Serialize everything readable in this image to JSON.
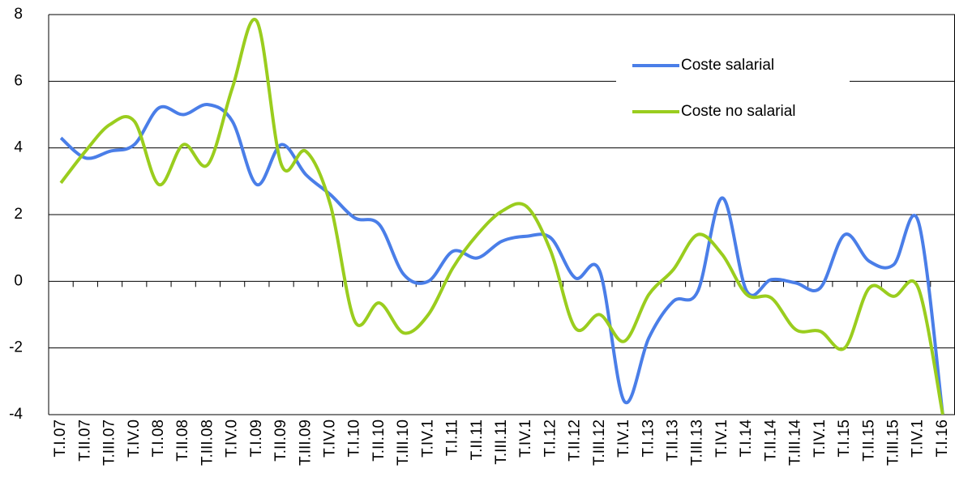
{
  "chart_data": {
    "type": "line",
    "categories": [
      "T.I.07",
      "T.II.07",
      "T.III.07",
      "T.IV.0",
      "T.I.08",
      "T.II.08",
      "T.III.08",
      "T.IV.0",
      "T.I.09",
      "T.II.09",
      "T.III.09",
      "T.IV.0",
      "T.I.10",
      "T.II.10",
      "T.III.10",
      "T.IV.1",
      "T.I.11",
      "T.II.11",
      "T.III.11",
      "T.IV.1",
      "T.I.12",
      "T.II.12",
      "T.III.12",
      "T.IV.1",
      "T.I.13",
      "T.II.13",
      "T.III.13",
      "T.IV.1",
      "T.I.14",
      "T.II.14",
      "T.III.14",
      "T.IV.1",
      "T.I.15",
      "T.II.15",
      "T.III.15",
      "T.IV.1",
      "T.I.16"
    ],
    "series": [
      {
        "name": "Coste salarial",
        "color": "#4a7ee8",
        "values": [
          4.3,
          3.7,
          3.9,
          4.1,
          5.2,
          5.0,
          5.3,
          4.8,
          2.9,
          4.1,
          3.2,
          2.6,
          1.9,
          1.7,
          0.2,
          0.0,
          0.9,
          0.7,
          1.2,
          1.35,
          1.3,
          0.1,
          0.3,
          -3.6,
          -1.7,
          -0.6,
          -0.3,
          2.5,
          -0.3,
          0.05,
          -0.05,
          -0.2,
          1.4,
          0.6,
          0.5,
          1.8,
          -4
        ]
      },
      {
        "name": "Coste no salarial",
        "color": "#9acd1e",
        "values": [
          2.95,
          3.9,
          4.7,
          4.8,
          2.9,
          4.1,
          3.5,
          5.8,
          7.8,
          3.5,
          3.9,
          2.3,
          -1.2,
          -0.65,
          -1.55,
          -1.0,
          0.4,
          1.4,
          2.1,
          2.25,
          0.9,
          -1.4,
          -1.0,
          -1.8,
          -0.4,
          0.35,
          1.4,
          0.8,
          -0.4,
          -0.5,
          -1.45,
          -1.5,
          -2.0,
          -0.2,
          -0.45,
          -0.2,
          -4
        ]
      }
    ],
    "ylim": [
      -4,
      8
    ],
    "yticks": [
      -4,
      -2,
      0,
      2,
      4,
      6,
      8
    ],
    "grid": true,
    "negative_tick_color": "#ff0000",
    "legend": "upper right",
    "smooth": true
  }
}
